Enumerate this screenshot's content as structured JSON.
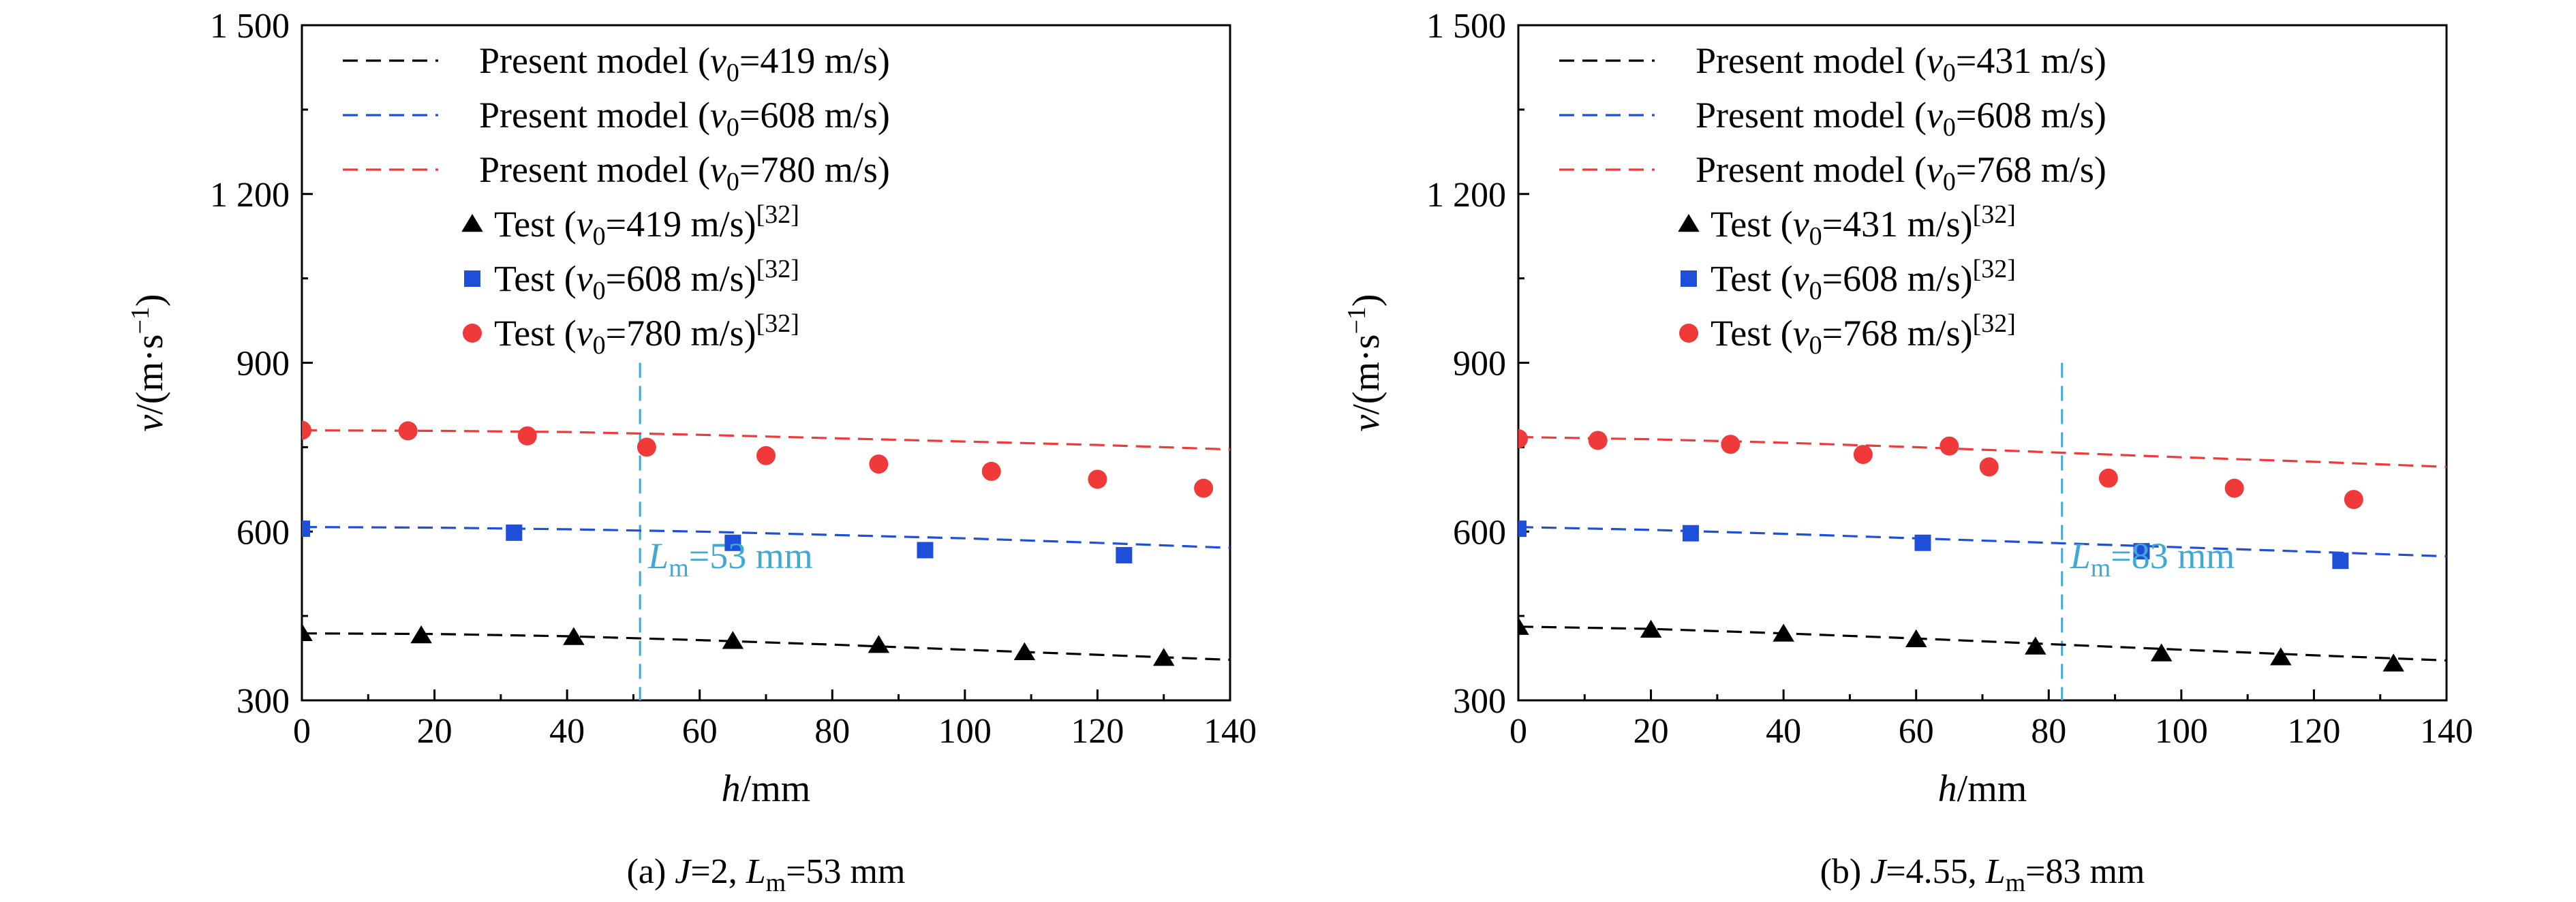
{
  "chart_data": [
    {
      "type": "line",
      "caption_parts": [
        "(a) ",
        "J",
        "=2, ",
        "L",
        "m",
        "=53 mm"
      ],
      "xlabel_var": "h",
      "xlabel_unit": "/mm",
      "ylabel_var": "v",
      "ylabel_unit_open": "/(m·s",
      "ylabel_unit_sup": "−1",
      "ylabel_unit_close": ")",
      "xlim": [
        0,
        140
      ],
      "ylim": [
        300,
        1500
      ],
      "xticks": [
        0,
        20,
        40,
        60,
        80,
        100,
        120,
        140
      ],
      "yticks": [
        300,
        600,
        900,
        1200,
        1500
      ],
      "xtick_labels": [
        "0",
        "20",
        "40",
        "60",
        "80",
        "100",
        "120",
        "140"
      ],
      "ytick_labels": [
        "300",
        "600",
        "900",
        "1 200",
        "1 500"
      ],
      "grid": false,
      "legend_position": "top-left",
      "marker_line": {
        "x": 51,
        "label_var": "L",
        "label_sub": "m",
        "label_rest": "=53 mm",
        "color": "#3FA9D4"
      },
      "series": [
        {
          "kind": "line",
          "color": "#000000",
          "legend_parts": [
            "Present model (",
            "v",
            "0",
            "=419 m/s)",
            ""
          ],
          "x": [
            0,
            20,
            40,
            60,
            80,
            100,
            120,
            140
          ],
          "y": [
            419,
            418,
            414,
            407,
            399,
            390,
            381,
            372
          ]
        },
        {
          "kind": "line",
          "color": "#1F4FD8",
          "legend_parts": [
            "Present model (",
            "v",
            "0",
            "=608 m/s)",
            ""
          ],
          "x": [
            0,
            20,
            40,
            60,
            80,
            100,
            120,
            140
          ],
          "y": [
            608,
            607,
            604,
            600,
            594,
            588,
            580,
            571
          ]
        },
        {
          "kind": "line",
          "color": "#F03A3A",
          "legend_parts": [
            "Present model (",
            "v",
            "0",
            "=780 m/s)",
            ""
          ],
          "x": [
            0,
            20,
            40,
            60,
            80,
            100,
            120,
            140
          ],
          "y": [
            780,
            779,
            777,
            772,
            766,
            760,
            754,
            746
          ]
        },
        {
          "kind": "triangle",
          "color": "#000000",
          "legend_parts": [
            "Test (",
            "v",
            "0",
            "=419 m/s)",
            "[32]"
          ],
          "x": [
            0,
            18,
            41,
            65,
            87,
            109,
            130
          ],
          "y": [
            419,
            415,
            412,
            405,
            398,
            385,
            375
          ]
        },
        {
          "kind": "square",
          "color": "#1F4FD8",
          "legend_parts": [
            "Test (",
            "v",
            "0",
            "=608 m/s)",
            "[32]"
          ],
          "x": [
            0,
            32,
            65,
            94,
            124
          ],
          "y": [
            605,
            598,
            580,
            567,
            558
          ]
        },
        {
          "kind": "circle",
          "color": "#F03A3A",
          "legend_parts": [
            "Test (",
            "v",
            "0",
            "=780 m/s)",
            "[32]"
          ],
          "x": [
            0,
            16,
            34,
            52,
            70,
            87,
            104,
            120,
            136
          ],
          "y": [
            780,
            779,
            770,
            750,
            735,
            720,
            707,
            693,
            677
          ]
        }
      ]
    },
    {
      "type": "line",
      "caption_parts": [
        "(b) ",
        "J",
        "=4.55, ",
        "L",
        "m",
        "=83 mm"
      ],
      "xlabel_var": "h",
      "xlabel_unit": "/mm",
      "ylabel_var": "v",
      "ylabel_unit_open": "/(m·s",
      "ylabel_unit_sup": "−1",
      "ylabel_unit_close": ")",
      "xlim": [
        0,
        140
      ],
      "ylim": [
        300,
        1500
      ],
      "xticks": [
        0,
        20,
        40,
        60,
        80,
        100,
        120,
        140
      ],
      "yticks": [
        300,
        600,
        900,
        1200,
        1500
      ],
      "xtick_labels": [
        "0",
        "20",
        "40",
        "60",
        "80",
        "100",
        "120",
        "140"
      ],
      "ytick_labels": [
        "300",
        "600",
        "900",
        "1 200",
        "1 500"
      ],
      "grid": false,
      "legend_position": "top-left",
      "marker_line": {
        "x": 82,
        "label_var": "L",
        "label_sub": "m",
        "label_rest": "=83 mm",
        "color": "#3FA9D4"
      },
      "series": [
        {
          "kind": "line",
          "color": "#000000",
          "legend_parts": [
            "Present model (",
            "v",
            "0",
            "=431 m/s)",
            ""
          ],
          "x": [
            0,
            20,
            40,
            60,
            80,
            100,
            120,
            140
          ],
          "y": [
            431,
            427,
            419,
            410,
            400,
            390,
            380,
            371
          ]
        },
        {
          "kind": "line",
          "color": "#1F4FD8",
          "legend_parts": [
            "Present model (",
            "v",
            "0",
            "=608 m/s)",
            ""
          ],
          "x": [
            0,
            20,
            40,
            60,
            80,
            100,
            120,
            140
          ],
          "y": [
            608,
            603,
            596,
            588,
            580,
            572,
            564,
            556
          ]
        },
        {
          "kind": "line",
          "color": "#F03A3A",
          "legend_parts": [
            "Present model (",
            "v",
            "0",
            "=768 m/s)",
            ""
          ],
          "x": [
            0,
            20,
            40,
            60,
            80,
            100,
            120,
            140
          ],
          "y": [
            768,
            764,
            758,
            750,
            741,
            732,
            724,
            715
          ]
        },
        {
          "kind": "triangle",
          "color": "#000000",
          "legend_parts": [
            "Test (",
            "v",
            "0",
            "=431 m/s)",
            "[32]"
          ],
          "x": [
            0,
            20,
            40,
            60,
            78,
            97,
            115,
            132
          ],
          "y": [
            430,
            425,
            418,
            408,
            395,
            383,
            376,
            365
          ]
        },
        {
          "kind": "square",
          "color": "#1F4FD8",
          "legend_parts": [
            "Test (",
            "v",
            "0",
            "=608 m/s)",
            "[32]"
          ],
          "x": [
            0,
            26,
            61,
            94,
            124
          ],
          "y": [
            605,
            597,
            580,
            565,
            548
          ]
        },
        {
          "kind": "circle",
          "color": "#F03A3A",
          "legend_parts": [
            "Test (",
            "v",
            "0",
            "=768 m/s)",
            "[32]"
          ],
          "x": [
            0,
            12,
            32,
            52,
            65,
            71,
            89,
            108,
            126
          ],
          "y": [
            765,
            762,
            755,
            737,
            752,
            715,
            695,
            677,
            657
          ]
        }
      ]
    }
  ]
}
